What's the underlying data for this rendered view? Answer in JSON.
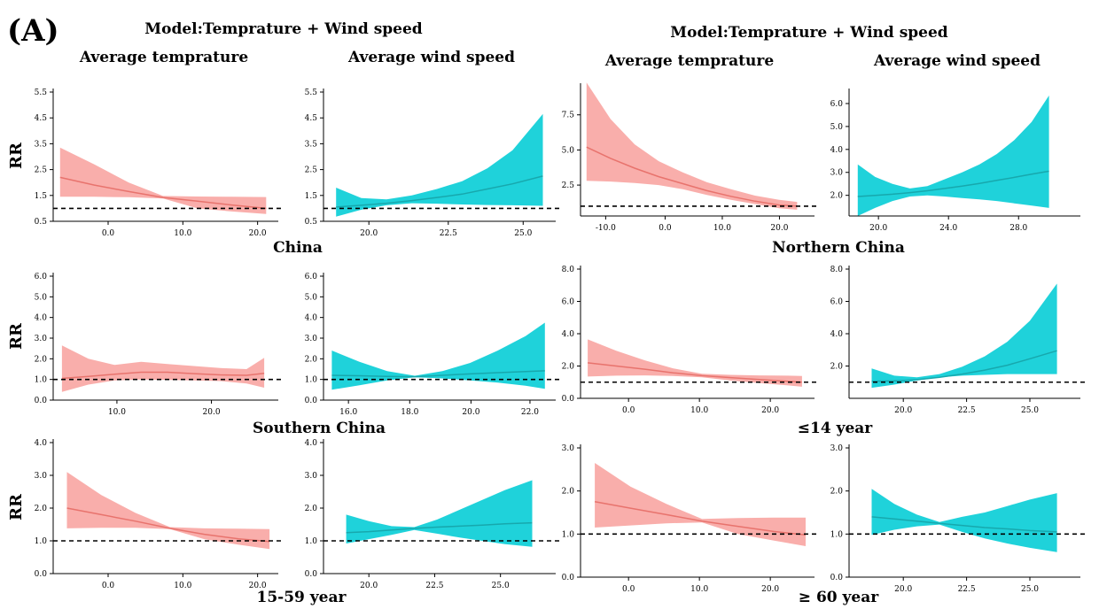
{
  "figure": {
    "panel_label": "(A)",
    "model_left": "Model:Temprature + Wind speed",
    "model_right": "Model:Temprature + Wind speed",
    "col_titles": [
      "Average temprature",
      "Average wind speed",
      "Average temprature",
      "Average wind speed"
    ],
    "group_labels": [
      "China",
      "Northern China",
      "Southern China",
      "≤14 year",
      "15-59 year",
      "≥ 60 year"
    ],
    "ylabel": "RR",
    "colors": {
      "temperature": "#f8a5a2",
      "temperature_line": "#e8736d",
      "wind": "#13d0d8",
      "wind_line": "#17a8ad"
    }
  },
  "chart_data": [
    {
      "type": "line",
      "group": "China",
      "variable": "Average temprature",
      "xticks": [
        "0.0",
        "10.0",
        "20.0"
      ],
      "yticks": [
        "0.5",
        "1.5",
        "2.5",
        "3.5",
        "4.5",
        "5.5"
      ],
      "xlim": [
        -6,
        26
      ],
      "ylim": [
        0.5,
        5.5
      ],
      "reference": 1,
      "x": [
        -5,
        0,
        5,
        10,
        15,
        20,
        25
      ],
      "rr": [
        2.2,
        1.9,
        1.65,
        1.42,
        1.28,
        1.13,
        1.0
      ],
      "lower": [
        1.45,
        1.45,
        1.43,
        1.38,
        1.0,
        0.88,
        0.78
      ],
      "upper": [
        3.35,
        2.7,
        2.0,
        1.48,
        1.46,
        1.45,
        1.44
      ]
    },
    {
      "type": "line",
      "group": "China",
      "variable": "Average wind speed",
      "xticks": [
        "20.0",
        "22.5",
        "25.0"
      ],
      "yticks": [
        "0.5",
        "1.5",
        "2.5",
        "3.5",
        "4.5",
        "5.5"
      ],
      "xlim": [
        18,
        27
      ],
      "ylim": [
        0.5,
        5.5
      ],
      "reference": 1,
      "x": [
        18.5,
        19.5,
        20.5,
        21.5,
        22.5,
        23.5,
        24.5,
        25.5,
        26.7
      ],
      "rr": [
        1.05,
        1.12,
        1.2,
        1.3,
        1.42,
        1.55,
        1.75,
        1.95,
        2.25
      ],
      "lower": [
        0.68,
        0.95,
        1.12,
        1.2,
        1.18,
        1.15,
        1.13,
        1.12,
        1.1
      ],
      "upper": [
        1.8,
        1.4,
        1.35,
        1.5,
        1.75,
        2.05,
        2.55,
        3.25,
        4.65
      ]
    },
    {
      "type": "line",
      "group": "Northern China",
      "variable": "Average temprature",
      "xticks": [
        "-10.0",
        "0.0",
        "10.0",
        "20.0"
      ],
      "yticks": [
        "2.5",
        "5.0",
        "7.5"
      ],
      "xlim": [
        -13,
        25
      ],
      "ylim": [
        0.3,
        9.5
      ],
      "reference": 1,
      "x": [
        -12,
        -8,
        -4,
        0,
        4,
        8,
        12,
        16,
        20,
        23
      ],
      "rr": [
        5.2,
        4.4,
        3.7,
        3.1,
        2.6,
        2.1,
        1.7,
        1.35,
        1.08,
        1.0
      ],
      "lower": [
        2.8,
        2.75,
        2.65,
        2.5,
        2.2,
        1.8,
        1.45,
        1.15,
        0.85,
        0.75
      ],
      "upper": [
        9.8,
        7.2,
        5.4,
        4.2,
        3.4,
        2.7,
        2.2,
        1.75,
        1.45,
        1.3
      ]
    },
    {
      "type": "line",
      "group": "Northern China",
      "variable": "Average wind speed",
      "xticks": [
        "20.0",
        "24.0",
        "28.0"
      ],
      "yticks": [
        "2.0",
        "3.0",
        "4.0",
        "5.0",
        "6.0"
      ],
      "xlim": [
        18.5,
        31.5
      ],
      "ylim": [
        1.1,
        6.5
      ],
      "reference": null,
      "x": [
        19,
        20,
        21,
        22,
        23,
        24,
        25,
        26,
        27,
        28,
        29,
        30
      ],
      "rr": [
        1.95,
        2.0,
        2.05,
        2.12,
        2.2,
        2.3,
        2.4,
        2.52,
        2.65,
        2.78,
        2.92,
        3.05
      ],
      "lower": [
        1.1,
        1.45,
        1.75,
        1.95,
        2.0,
        1.95,
        1.88,
        1.82,
        1.75,
        1.65,
        1.55,
        1.45
      ],
      "upper": [
        3.35,
        2.8,
        2.5,
        2.3,
        2.4,
        2.7,
        3.0,
        3.35,
        3.8,
        4.4,
        5.2,
        6.35
      ]
    },
    {
      "type": "line",
      "group": "Southern China",
      "variable": "Average temprature",
      "xticks": [
        "10.0",
        "20.0"
      ],
      "yticks": [
        "0.0",
        "1.0",
        "2.0",
        "3.0",
        "4.0",
        "5.0",
        "6.0"
      ],
      "xlim": [
        2,
        27
      ],
      "ylim": [
        0,
        6
      ],
      "reference": 1,
      "x": [
        3,
        6,
        9,
        12,
        15,
        18,
        21,
        24,
        26
      ],
      "rr": [
        1.05,
        1.15,
        1.25,
        1.35,
        1.35,
        1.28,
        1.22,
        1.2,
        1.3
      ],
      "lower": [
        0.4,
        0.75,
        0.95,
        1.0,
        0.98,
        0.95,
        0.92,
        0.8,
        0.6
      ],
      "upper": [
        2.65,
        2.0,
        1.7,
        1.85,
        1.75,
        1.65,
        1.55,
        1.5,
        2.05
      ]
    },
    {
      "type": "line",
      "group": "Southern China",
      "variable": "Average wind speed",
      "xticks": [
        "16.0",
        "18.0",
        "20.0",
        "22.0"
      ],
      "yticks": [
        "0.0",
        "1.0",
        "2.0",
        "3.0",
        "4.0",
        "5.0",
        "6.0"
      ],
      "xlim": [
        15.2,
        23.4
      ],
      "ylim": [
        0,
        6
      ],
      "reference": 1,
      "x": [
        15.5,
        16.5,
        17.5,
        18.5,
        19.5,
        20.5,
        21.5,
        22.5,
        23.2
      ],
      "rr": [
        1.2,
        1.18,
        1.15,
        1.13,
        1.2,
        1.27,
        1.33,
        1.38,
        1.42
      ],
      "lower": [
        0.5,
        0.72,
        0.95,
        1.1,
        1.05,
        0.95,
        0.85,
        0.7,
        0.55
      ],
      "upper": [
        2.4,
        1.85,
        1.4,
        1.18,
        1.4,
        1.8,
        2.4,
        3.1,
        3.75
      ]
    },
    {
      "type": "line",
      "group": "≤14 year",
      "variable": "Average temprature",
      "xticks": [
        "0.0",
        "10.0",
        "20.0"
      ],
      "yticks": [
        "0.0",
        "2.0",
        "4.0",
        "6.0",
        "8.0"
      ],
      "xlim": [
        -7,
        25
      ],
      "ylim": [
        0,
        8
      ],
      "reference": 1,
      "x": [
        -6,
        -2,
        2,
        6,
        10,
        14,
        18,
        22,
        24
      ],
      "rr": [
        2.2,
        2.0,
        1.8,
        1.58,
        1.4,
        1.28,
        1.16,
        1.05,
        1.0
      ],
      "lower": [
        1.35,
        1.4,
        1.42,
        1.38,
        1.3,
        1.1,
        0.95,
        0.8,
        0.72
      ],
      "upper": [
        3.65,
        2.95,
        2.35,
        1.85,
        1.52,
        1.45,
        1.42,
        1.4,
        1.38
      ]
    },
    {
      "type": "line",
      "group": "≤14 year",
      "variable": "Average wind speed",
      "xticks": [
        "20.0",
        "22.5",
        "25.0"
      ],
      "yticks": [
        "2.0",
        "4.0",
        "6.0",
        "8.0"
      ],
      "xlim": [
        17.5,
        27.5
      ],
      "ylim": [
        0,
        8
      ],
      "reference": 1,
      "x": [
        18.5,
        19.5,
        20.5,
        21.5,
        22.5,
        23.5,
        24.5,
        25.5,
        26.7
      ],
      "rr": [
        1.05,
        1.08,
        1.15,
        1.3,
        1.5,
        1.75,
        2.05,
        2.45,
        2.95
      ],
      "lower": [
        0.65,
        0.85,
        1.1,
        1.3,
        1.4,
        1.45,
        1.5,
        1.5,
        1.5
      ],
      "upper": [
        1.85,
        1.4,
        1.3,
        1.5,
        1.95,
        2.6,
        3.5,
        4.8,
        7.1
      ]
    },
    {
      "type": "line",
      "group": "15-59 year",
      "variable": "Average temprature",
      "xticks": [
        "0.0",
        "10.0",
        "20.0"
      ],
      "yticks": [
        "0.0",
        "1.0",
        "2.0",
        "3.0",
        "4.0"
      ],
      "xlim": [
        -7,
        25
      ],
      "ylim": [
        0,
        4
      ],
      "reference": 1,
      "x": [
        -5,
        0,
        5,
        10,
        15,
        20,
        24.5
      ],
      "rr": [
        2.0,
        1.8,
        1.6,
        1.38,
        1.2,
        1.06,
        0.98
      ],
      "lower": [
        1.38,
        1.4,
        1.4,
        1.36,
        1.05,
        0.88,
        0.75
      ],
      "upper": [
        3.1,
        2.4,
        1.85,
        1.42,
        1.38,
        1.37,
        1.36
      ]
    },
    {
      "type": "line",
      "group": "15-59 year",
      "variable": "Average wind speed",
      "xticks": [
        "20.0",
        "22.5",
        "25.0"
      ],
      "yticks": [
        "0.0",
        "1.0",
        "2.0",
        "3.0",
        "4.0"
      ],
      "xlim": [
        17.5,
        27.5
      ],
      "ylim": [
        0,
        4
      ],
      "reference": 1,
      "x": [
        18.5,
        19.5,
        20.5,
        21.5,
        22.5,
        23.5,
        24.5,
        25.5,
        26.7
      ],
      "rr": [
        1.25,
        1.28,
        1.33,
        1.38,
        1.42,
        1.45,
        1.48,
        1.52,
        1.55
      ],
      "lower": [
        0.92,
        1.05,
        1.18,
        1.33,
        1.22,
        1.1,
        1.0,
        0.9,
        0.82
      ],
      "upper": [
        1.8,
        1.6,
        1.45,
        1.42,
        1.65,
        1.95,
        2.25,
        2.55,
        2.85
      ]
    },
    {
      "type": "line",
      "group": "≥ 60 year",
      "variable": "Average temprature",
      "xticks": [
        "0.0",
        "10.0",
        "20.0"
      ],
      "yticks": [
        "0.0",
        "1.0",
        "2.0",
        "3.0"
      ],
      "xlim": [
        -7,
        25
      ],
      "ylim": [
        0,
        3
      ],
      "reference": 1,
      "x": [
        -5,
        0,
        5,
        10,
        15,
        20,
        24.5
      ],
      "rr": [
        1.75,
        1.6,
        1.45,
        1.3,
        1.18,
        1.06,
        0.98
      ],
      "lower": [
        1.15,
        1.2,
        1.25,
        1.27,
        1.0,
        0.85,
        0.72
      ],
      "upper": [
        2.65,
        2.1,
        1.7,
        1.35,
        1.37,
        1.38,
        1.38
      ]
    },
    {
      "type": "line",
      "group": "≥ 60 year",
      "variable": "Average wind speed",
      "xticks": [
        "20.0",
        "22.5",
        "25.0"
      ],
      "yticks": [
        "0.0",
        "1.0",
        "2.0",
        "3.0"
      ],
      "xlim": [
        17.5,
        27.5
      ],
      "ylim": [
        0,
        3
      ],
      "reference": 1,
      "x": [
        18.5,
        19.5,
        20.5,
        21.5,
        22.5,
        23.5,
        24.5,
        25.5,
        26.7
      ],
      "rr": [
        1.4,
        1.35,
        1.3,
        1.25,
        1.2,
        1.15,
        1.12,
        1.08,
        1.05
      ],
      "lower": [
        0.98,
        1.1,
        1.18,
        1.22,
        1.05,
        0.9,
        0.78,
        0.68,
        0.58
      ],
      "upper": [
        2.05,
        1.7,
        1.45,
        1.28,
        1.4,
        1.5,
        1.65,
        1.8,
        1.95
      ]
    }
  ]
}
